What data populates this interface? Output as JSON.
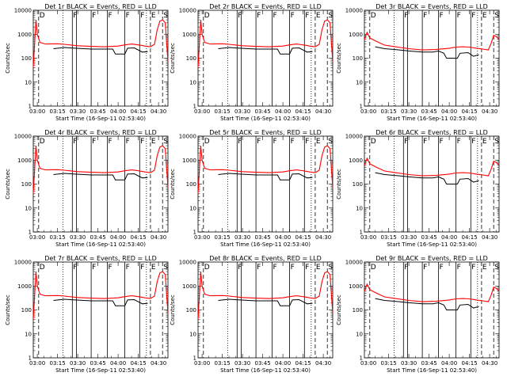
{
  "chart_data": {
    "type": "line",
    "panels": [
      {
        "title": "Det 1r BLACK = Events, RED = LLD",
        "level": "high"
      },
      {
        "title": "Det 2r BLACK = Events, RED = LLD",
        "level": "high"
      },
      {
        "title": "Det 3r BLACK = Events, RED = LLD",
        "level": "low"
      },
      {
        "title": "Det 4r BLACK = Events, RED = LLD",
        "level": "high"
      },
      {
        "title": "Det 5r BLACK = Events, RED = LLD",
        "level": "high"
      },
      {
        "title": "Det 6r BLACK = Events, RED = LLD",
        "level": "low"
      },
      {
        "title": "Det 7r BLACK = Events, RED = LLD",
        "level": "high"
      },
      {
        "title": "Det 8r BLACK = Events, RED = LLD",
        "level": "high"
      },
      {
        "title": "Det 9r BLACK = Events, RED = LLD",
        "level": "low"
      }
    ],
    "ylabel": "Counts/sec",
    "xlabel": "Start Time (16-Sep-11 02:53:40)",
    "x_ticks": [
      "03:00",
      "03:15",
      "03:30",
      "03:45",
      "04:00",
      "04:15",
      "04:30"
    ],
    "y_ticks": [
      "1",
      "10",
      "100",
      "1000",
      "10000"
    ],
    "ylim": [
      1,
      10000
    ],
    "yscale": "log",
    "xlim_min": [
      -3,
      97
    ],
    "series_colors": {
      "events": "#000000",
      "lld": "#ff0000"
    },
    "flags": [
      {
        "x": 1,
        "label": "D",
        "style": "dashed"
      },
      {
        "x": 19,
        "label": "",
        "style": "dotted"
      },
      {
        "x": 26,
        "label": "F",
        "style": "solid"
      },
      {
        "x": 29,
        "label": "",
        "style": "solid"
      },
      {
        "x": 40,
        "label": "F",
        "style": "solid"
      },
      {
        "x": 52,
        "label": "F",
        "style": "solid"
      },
      {
        "x": 65,
        "label": "F",
        "style": "solid"
      },
      {
        "x": 76,
        "label": "F",
        "style": "solid"
      },
      {
        "x": 81,
        "label": "",
        "style": "dotted"
      },
      {
        "x": 84,
        "label": "E",
        "style": "dashed"
      },
      {
        "x": 93,
        "label": "S",
        "style": "dashed"
      }
    ],
    "series": {
      "high": {
        "lld": [
          [
            -3,
            40
          ],
          [
            -1,
            4000
          ],
          [
            0,
            1000
          ],
          [
            2,
            450
          ],
          [
            6,
            390
          ],
          [
            15,
            400
          ],
          [
            20,
            380
          ],
          [
            30,
            330
          ],
          [
            40,
            310
          ],
          [
            50,
            300
          ],
          [
            60,
            320
          ],
          [
            65,
            360
          ],
          [
            70,
            390
          ],
          [
            75,
            360
          ],
          [
            80,
            320
          ],
          [
            84,
            300
          ],
          [
            87,
            380
          ],
          [
            89,
            1500
          ],
          [
            91,
            3500
          ],
          [
            93,
            4000
          ],
          [
            95,
            3000
          ],
          [
            97,
            70
          ]
        ],
        "events": [
          [
            12,
            250
          ],
          [
            20,
            280
          ],
          [
            28,
            260
          ],
          [
            40,
            240
          ],
          [
            56,
            240
          ],
          [
            58,
            150
          ],
          [
            65,
            150
          ],
          [
            67,
            260
          ],
          [
            72,
            270
          ],
          [
            78,
            180
          ],
          [
            82,
            190
          ]
        ]
      },
      "low": {
        "lld": [
          [
            -3,
            600
          ],
          [
            -1,
            1200
          ],
          [
            1,
            700
          ],
          [
            6,
            500
          ],
          [
            12,
            350
          ],
          [
            20,
            300
          ],
          [
            30,
            250
          ],
          [
            40,
            220
          ],
          [
            50,
            230
          ],
          [
            60,
            260
          ],
          [
            65,
            290
          ],
          [
            70,
            300
          ],
          [
            75,
            290
          ],
          [
            80,
            260
          ],
          [
            85,
            240
          ],
          [
            89,
            220
          ],
          [
            91,
            400
          ],
          [
            93,
            900
          ],
          [
            95,
            800
          ],
          [
            97,
            600
          ]
        ],
        "events": [
          [
            5,
            300
          ],
          [
            12,
            250
          ],
          [
            20,
            230
          ],
          [
            30,
            200
          ],
          [
            40,
            180
          ],
          [
            48,
            180
          ],
          [
            52,
            200
          ],
          [
            56,
            160
          ],
          [
            58,
            100
          ],
          [
            66,
            100
          ],
          [
            68,
            160
          ],
          [
            74,
            170
          ],
          [
            78,
            120
          ],
          [
            82,
            140
          ]
        ]
      }
    }
  }
}
